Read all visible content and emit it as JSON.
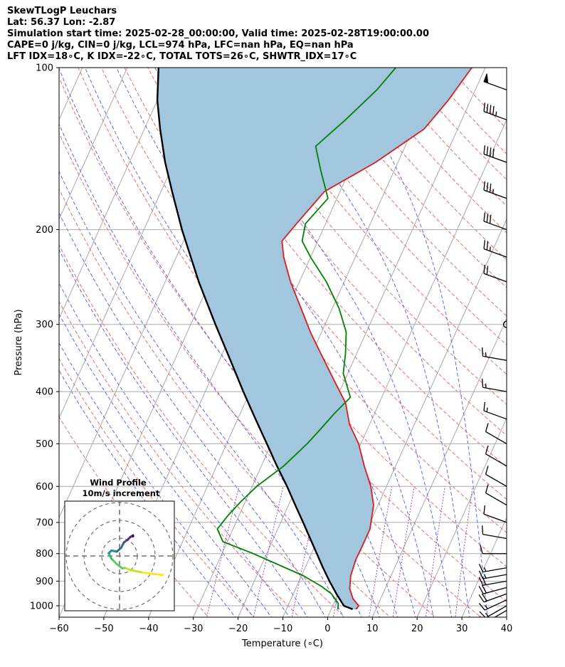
{
  "header": {
    "line1": "SkewTLogP Leuchars",
    "line2": "Lat: 56.37   Lon: -2.87",
    "line3": "Simulation start time: 2025-02-28_00:00:00, Valid time: 2025-02-28T19:00:00.00",
    "line4": "CAPE=0 j/kg, CIN=0 j/kg, LCL=974 hPa, LFC=nan hPa, EQ=nan hPa",
    "line5": "LFT IDX=18∘C, K IDX=-22∘C, TOTAL TOTS=26∘C, SHWTR_IDX=17∘C"
  },
  "colors": {
    "temperature": "#e31a1c",
    "dewpoint": "#008000",
    "parcel": "#000000",
    "cin_area": "#a3c6df",
    "isotherm": "#a9a9a9",
    "dry_adiabat": "#ef6a6a",
    "moist_adiabat": "#5b6cf0",
    "mixing_ratio": "#9b4fc0"
  },
  "chart_data": {
    "type": "line",
    "title": "",
    "xlabel": "Temperature (∘C)",
    "ylabel": "Pressure (hPa)",
    "xlim": [
      -60,
      40
    ],
    "ylim": [
      1050,
      100
    ],
    "y_scale": "log",
    "skew": true,
    "x_ticks": [
      "−60",
      "−50",
      "−40",
      "−30",
      "−20",
      "−10",
      "0",
      "10",
      "20",
      "30",
      "40"
    ],
    "y_ticks": [
      "100",
      "200",
      "300",
      "400",
      "500",
      "600",
      "700",
      "800",
      "900",
      "1000"
    ],
    "grid": true,
    "series": [
      {
        "key": "temperature",
        "pressure": [
          1015,
          1000,
          970,
          930,
          880,
          820,
          780,
          720,
          650,
          600,
          550,
          500,
          460,
          420,
          380,
          340,
          310,
          280,
          250,
          225,
          210,
          195,
          170,
          150,
          130,
          115,
          100
        ],
        "values": [
          5.5,
          5.8,
          3.8,
          2.1,
          1.0,
          0.5,
          0.6,
          0.6,
          -1.0,
          -3.5,
          -7.0,
          -10.5,
          -14.5,
          -17.5,
          -22.5,
          -28.0,
          -32.5,
          -37.0,
          -42.0,
          -46.0,
          -48.0,
          -46.5,
          -43.5,
          -35.0,
          -27.5,
          -25.0,
          -23.0
        ]
      },
      {
        "key": "dewpoint",
        "pressure": [
          1015,
          990,
          950,
          920,
          880,
          800,
          760,
          720,
          680,
          640,
          600,
          550,
          500,
          470,
          440,
          410,
          370,
          340,
          310,
          280,
          250,
          225,
          210,
          195,
          175,
          155,
          140,
          125,
          110,
          100
        ],
        "values": [
          1.5,
          1.0,
          -1.5,
          -4.5,
          -9.5,
          -23.0,
          -31.0,
          -33.5,
          -32.5,
          -31.0,
          -29.0,
          -25.0,
          -22.0,
          -20.5,
          -19.0,
          -17.0,
          -21.0,
          -22.5,
          -24.5,
          -28.5,
          -34.0,
          -40.0,
          -43.5,
          -44.5,
          -42.0,
          -46.5,
          -50.0,
          -46.0,
          -42.0,
          -40.0
        ]
      },
      {
        "key": "parcel",
        "pressure": [
          1015,
          1000,
          974,
          950,
          900,
          850,
          800,
          750,
          700,
          650,
          600,
          550,
          500,
          450,
          400,
          350,
          300,
          250,
          200,
          170,
          150,
          130,
          115,
          100
        ],
        "values": [
          4.8,
          2.5,
          1.0,
          -0.4,
          -3.2,
          -6.0,
          -8.8,
          -11.8,
          -15.0,
          -18.5,
          -22.2,
          -26.5,
          -31.0,
          -36.0,
          -41.5,
          -47.5,
          -54.5,
          -62.5,
          -71.5,
          -77.5,
          -82.0,
          -86.5,
          -90.0,
          -93.0
        ]
      }
    ],
    "wind_barbs": {
      "pressure": [
        1020,
        1000,
        975,
        950,
        925,
        900,
        875,
        850,
        800,
        750,
        700,
        650,
        600,
        550,
        500,
        450,
        400,
        350,
        300,
        250,
        225,
        200,
        175,
        150,
        125,
        110
      ],
      "speed_kt": [
        10,
        15,
        15,
        20,
        20,
        20,
        15,
        15,
        10,
        10,
        10,
        10,
        10,
        10,
        10,
        15,
        15,
        15,
        0,
        20,
        25,
        30,
        35,
        40,
        45,
        50
      ],
      "direction_deg": [
        240,
        240,
        245,
        250,
        255,
        260,
        260,
        260,
        270,
        280,
        290,
        300,
        300,
        300,
        300,
        290,
        280,
        280,
        0,
        290,
        290,
        290,
        290,
        290,
        290,
        290
      ]
    },
    "hodograph": {
      "title": "Wind Profile",
      "subtitle": "10m/s increment",
      "u": [
        8,
        6,
        4,
        2,
        1,
        0.5,
        -0.5,
        -1.5,
        -2.0,
        -1.5,
        -0.5,
        0.3,
        0.8,
        1.5,
        2.0,
        2.5,
        2.5
      ],
      "v": [
        -3.5,
        -3.3,
        -3.0,
        -2.6,
        -2.2,
        -2.3,
        -1.5,
        -0.5,
        0.5,
        1.0,
        0.8,
        1.5,
        2.5,
        3.0,
        3.5,
        3.8,
        3.6
      ]
    }
  }
}
